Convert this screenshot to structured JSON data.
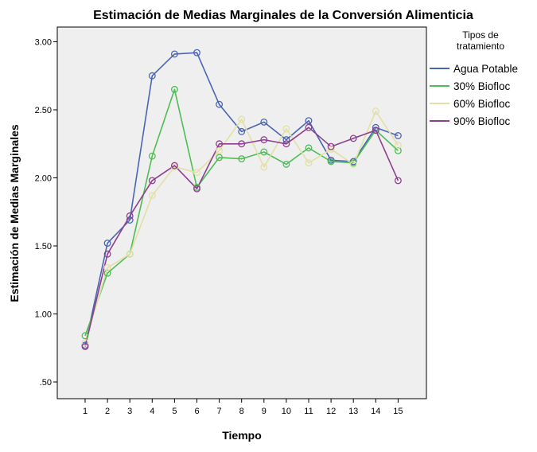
{
  "chart_data": {
    "type": "line",
    "title": "Estimación de Medias Marginales de la Conversión Alimenticia",
    "xlabel": "Tiempo",
    "ylabel": "Estimación de Medias Marginales",
    "categories": [
      "1",
      "2",
      "3",
      "4",
      "5",
      "6",
      "7",
      "8",
      "9",
      "10",
      "11",
      "12",
      "13",
      "14",
      "15"
    ],
    "y_ticks": [
      ".50",
      "1.00",
      "1.50",
      "2.00",
      "2.50",
      "3.00"
    ],
    "ylim": [
      0.4,
      3.15
    ],
    "grid": false,
    "legend": {
      "title_lines": [
        "Tipos de",
        "tratamiento"
      ],
      "placement": "right"
    },
    "series": [
      {
        "name": "Agua Potable",
        "color": "#4a65b4",
        "values": [
          0.77,
          1.52,
          1.69,
          2.75,
          2.91,
          2.92,
          2.54,
          2.34,
          2.41,
          2.28,
          2.42,
          2.13,
          2.12,
          2.37,
          2.31
        ]
      },
      {
        "name": "30% Biofloc",
        "color": "#4dbd54",
        "values": [
          0.84,
          1.3,
          1.44,
          2.16,
          2.65,
          1.93,
          2.15,
          2.14,
          2.19,
          2.1,
          2.22,
          2.12,
          2.11,
          2.35,
          2.2
        ]
      },
      {
        "name": "60% Biofloc",
        "color": "#e2e0a6",
        "values": [
          0.79,
          1.34,
          1.44,
          1.87,
          2.08,
          2.04,
          2.2,
          2.43,
          2.08,
          2.36,
          2.11,
          2.21,
          2.1,
          2.49,
          2.24
        ]
      },
      {
        "name": "90% Biofloc",
        "color": "#8e3f8e",
        "values": [
          0.76,
          1.44,
          1.72,
          1.98,
          2.09,
          1.92,
          2.25,
          2.25,
          2.28,
          2.25,
          2.37,
          2.23,
          2.29,
          2.35,
          1.98
        ]
      }
    ]
  }
}
